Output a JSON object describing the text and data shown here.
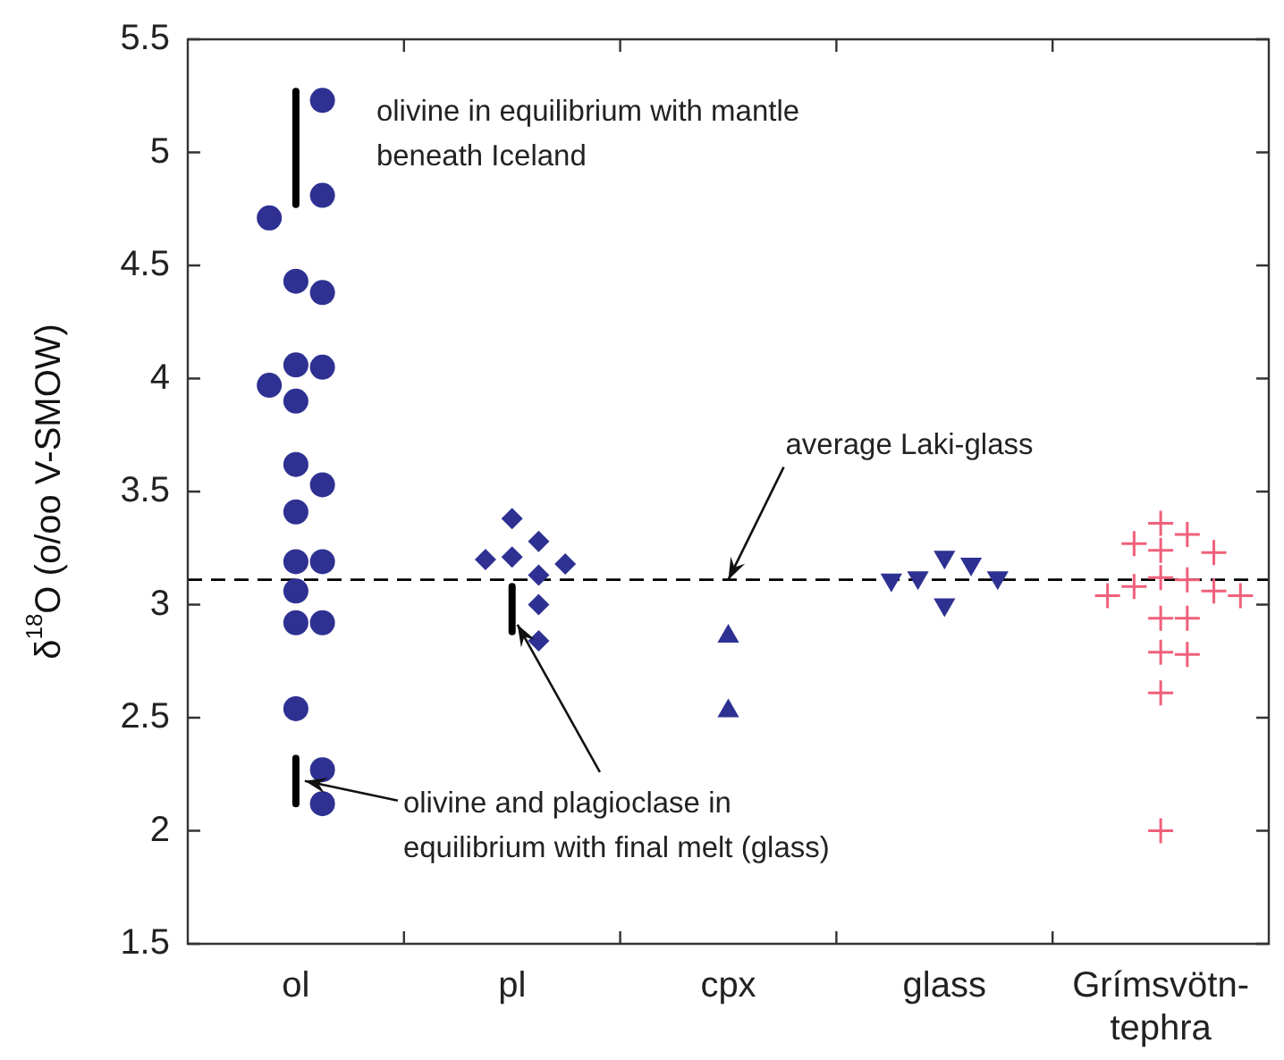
{
  "chart_data": {
    "type": "scatter",
    "ylabel": "δ$^{18}$O (o/oo V-SMOW)",
    "categories": [
      "ol",
      "pl",
      "cpx",
      "glass",
      "Grímsvötn-tephra"
    ],
    "ylim": [
      1.5,
      5.5
    ],
    "yticks": [
      1.5,
      2,
      2.5,
      3,
      3.5,
      4,
      4.5,
      5,
      5.5
    ],
    "grid": false,
    "legend": false,
    "series": [
      {
        "marker": "circle",
        "color": "#2e3192",
        "x": [
          "ol",
          "ol",
          "ol",
          "ol",
          "ol",
          "ol",
          "ol",
          "ol",
          "ol",
          "ol",
          "ol",
          "ol",
          "ol",
          "ol",
          "ol",
          "ol",
          "ol",
          "ol",
          "ol",
          "ol"
        ],
        "values": [
          5.23,
          4.81,
          4.71,
          4.38,
          4.43,
          4.06,
          4.05,
          3.97,
          3.9,
          3.62,
          3.53,
          3.41,
          3.19,
          3.19,
          3.06,
          2.92,
          2.92,
          2.54,
          2.27,
          2.12
        ]
      },
      {
        "marker": "diamond",
        "color": "#2e3192",
        "x": [
          "pl",
          "pl",
          "pl",
          "pl",
          "pl",
          "pl",
          "pl",
          "pl"
        ],
        "values": [
          3.28,
          3.38,
          3.2,
          3.13,
          3.18,
          3.21,
          3.0,
          2.84
        ]
      },
      {
        "marker": "triangle",
        "color": "#2e3192",
        "x": [
          "cpx",
          "cpx"
        ],
        "values": [
          2.86,
          2.53
        ]
      },
      {
        "marker": "triangle-down",
        "color": "#2e3192",
        "x": [
          "glass",
          "glass",
          "glass",
          "glass",
          "glass",
          "glass"
        ],
        "values": [
          3.12,
          3.11,
          3.18,
          3.0,
          3.21,
          3.12
        ]
      },
      {
        "marker": "cross",
        "color": "#f0607a",
        "x": [
          "Grímsvötn-tephra",
          "Grímsvötn-tephra",
          "Grímsvötn-tephra",
          "Grímsvötn-tephra",
          "Grímsvötn-tephra",
          "Grímsvötn-tephra",
          "Grímsvötn-tephra",
          "Grímsvötn-tephra",
          "Grímsvötn-tephra",
          "Grímsvötn-tephra",
          "Grímsvötn-tephra",
          "Grímsvötn-tephra",
          "Grímsvötn-tephra",
          "Grímsvötn-tephra",
          "Grímsvötn-tephra",
          "Grímsvötn-tephra",
          "Grímsvötn-tephra"
        ],
        "values": [
          3.24,
          3.36,
          3.31,
          3.23,
          3.27,
          3.06,
          3.12,
          3.04,
          3.11,
          2.94,
          2.94,
          3.04,
          3.08,
          2.79,
          2.78,
          2.61,
          2.0
        ]
      },
      {
        "type": "line",
        "color": "#000000",
        "x": [
          "ol",
          "ol"
        ],
        "values": [
          5.27,
          4.77
        ]
      },
      {
        "type": "line",
        "color": "#000000",
        "x": [
          "ol",
          "ol"
        ],
        "values": [
          2.32,
          2.12
        ]
      },
      {
        "type": "line",
        "color": "#000000",
        "x": [
          "pl",
          "pl"
        ],
        "values": [
          3.08,
          2.88
        ]
      }
    ],
    "ref_lines": [
      {
        "axis": "y",
        "value": 3.11,
        "color": "#000000",
        "line_style": "dashed"
      }
    ],
    "annotations": [
      "olivine in equilibrium with mantle beneath Iceland",
      {
        "text": "average Laki-glass",
        "x": "cpx",
        "y": 3.11
      },
      {
        "text": "olivine and plagioclase in equilibrium with final melt (glass)",
        "x": "ol",
        "y": 2.22
      }
    ]
  }
}
